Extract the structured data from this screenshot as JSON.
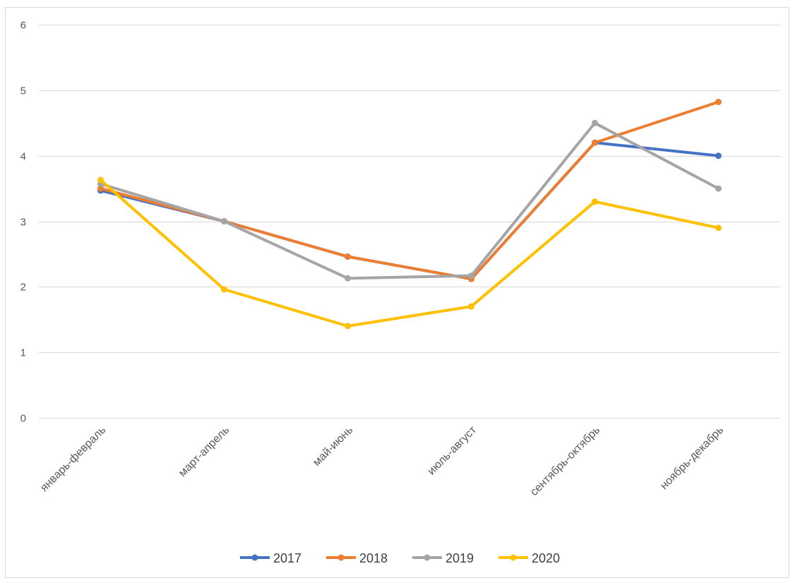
{
  "chart_data": {
    "type": "line",
    "title": "",
    "xlabel": "",
    "ylabel": "",
    "categories": [
      "январь-февраль",
      "март-апрель",
      "май-июнь",
      "июль-август",
      "сентябрь-октябрь",
      "ноябрь-декабрь"
    ],
    "ylim": [
      0,
      6
    ],
    "yticks": [
      0,
      1,
      2,
      3,
      4,
      5,
      6
    ],
    "grid": true,
    "legend_position": "bottom",
    "series": [
      {
        "name": "2017",
        "color": "#4472C4",
        "values": [
          3.47,
          3.0,
          2.46,
          2.12,
          4.2,
          4.0
        ]
      },
      {
        "name": "2018",
        "color": "#ED7D31",
        "values": [
          3.5,
          3.0,
          2.46,
          2.12,
          4.2,
          4.82
        ]
      },
      {
        "name": "2019",
        "color": "#A5A5A5",
        "values": [
          3.57,
          3.0,
          2.13,
          2.17,
          4.5,
          3.5
        ]
      },
      {
        "name": "2020",
        "color": "#FFC000",
        "values": [
          3.63,
          1.96,
          1.4,
          1.7,
          3.3,
          2.9
        ]
      }
    ]
  }
}
